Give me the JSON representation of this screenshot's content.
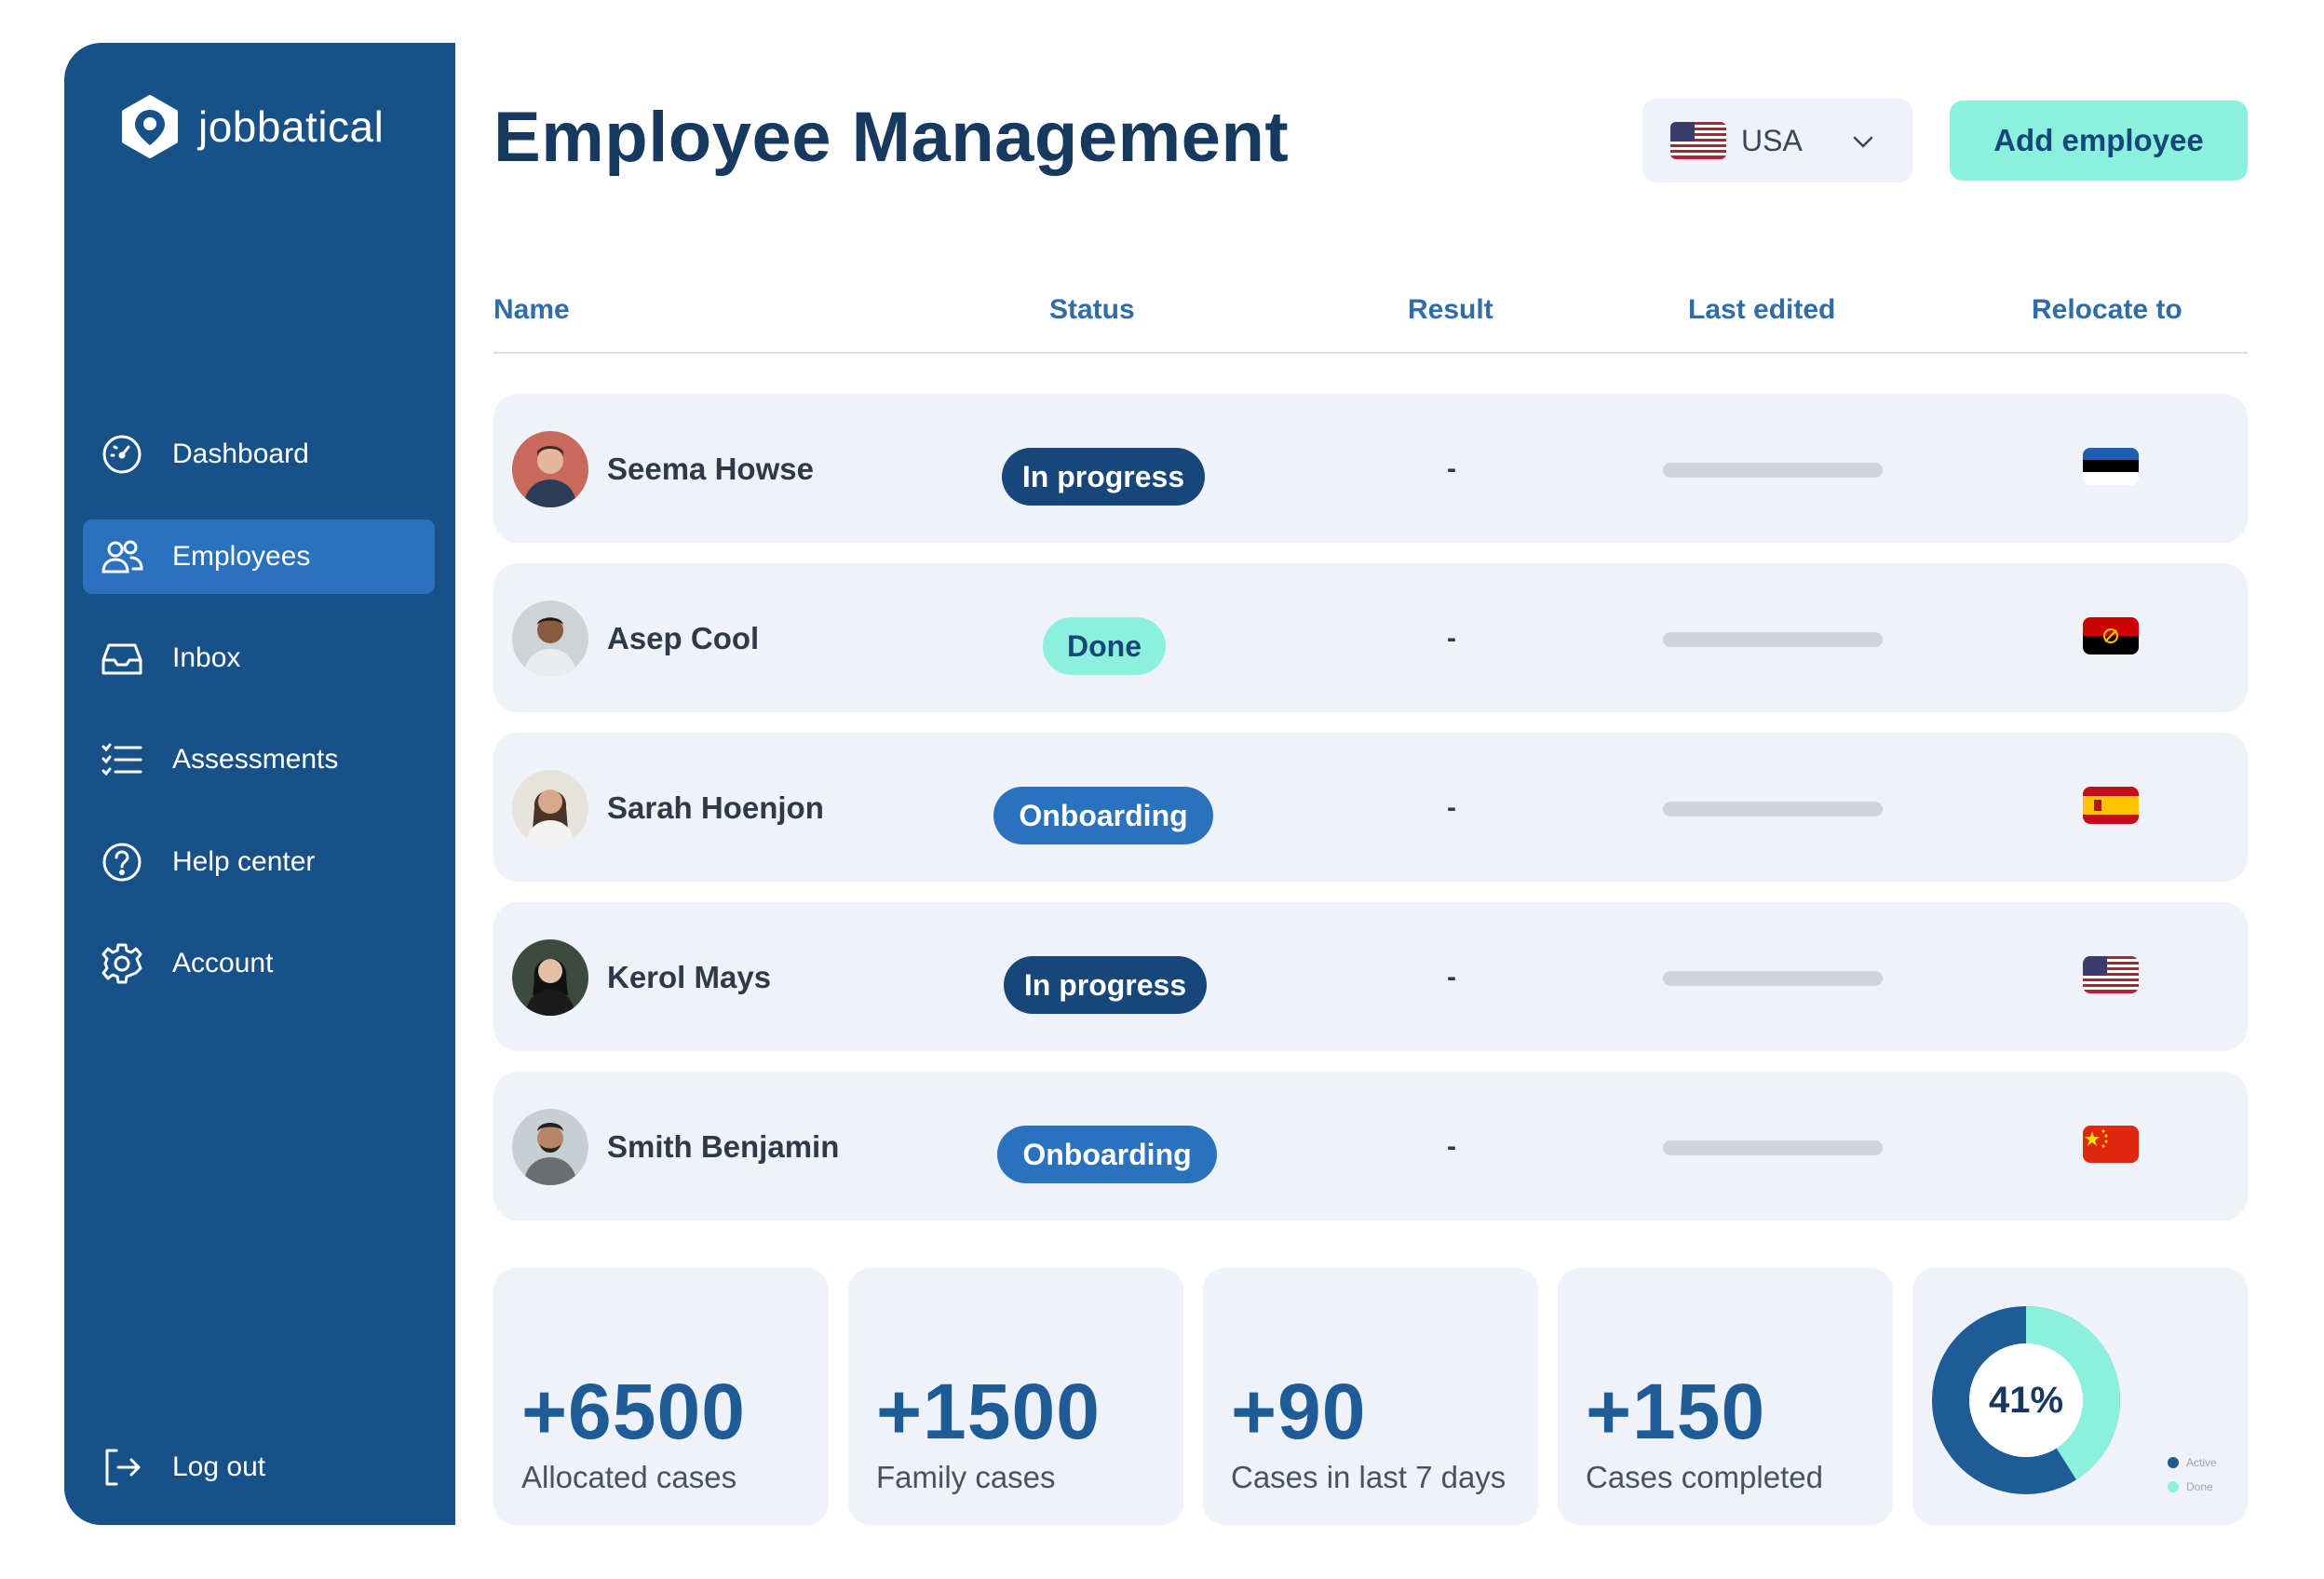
{
  "brand": {
    "name": "jobbatical"
  },
  "sidebar": {
    "items": [
      {
        "label": "Dashboard",
        "icon": "gauge-icon"
      },
      {
        "label": "Employees",
        "icon": "people-icon",
        "active": true
      },
      {
        "label": "Inbox",
        "icon": "inbox-icon"
      },
      {
        "label": "Assessments",
        "icon": "checklist-icon"
      },
      {
        "label": "Help center",
        "icon": "question-icon"
      },
      {
        "label": "Account",
        "icon": "gear-icon"
      }
    ],
    "logout": {
      "label": "Log out",
      "icon": "logout-icon"
    }
  },
  "header": {
    "title": "Employee Management",
    "country_select": {
      "value": "USA",
      "flag": "us-flag-icon"
    },
    "add_button": "Add employee"
  },
  "table": {
    "columns": [
      "Name",
      "Status",
      "Result",
      "Last edited",
      "Relocate to"
    ],
    "rows": [
      {
        "name": "Seema Howse",
        "status": "In progress",
        "result": "-",
        "flag": "estonia-flag-icon"
      },
      {
        "name": "Asep Cool",
        "status": "Done",
        "result": "-",
        "flag": "angola-flag-icon"
      },
      {
        "name": "Sarah Hoenjon",
        "status": "Onboarding",
        "result": "-",
        "flag": "spain-flag-icon"
      },
      {
        "name": "Kerol Mays",
        "status": "In progress",
        "result": "-",
        "flag": "usa-flag-icon"
      },
      {
        "name": "Smith Benjamin",
        "status": "Onboarding",
        "result": "-",
        "flag": "china-flag-icon"
      }
    ]
  },
  "stats": [
    {
      "value": "+6500",
      "label": "Allocated cases"
    },
    {
      "value": "+1500",
      "label": "Family cases"
    },
    {
      "value": "+90",
      "label": "Cases in last 7 days"
    },
    {
      "value": "+150",
      "label": "Cases completed"
    }
  ],
  "donut": {
    "label": "41%",
    "percent": 41,
    "legend": [
      {
        "name": "Active",
        "color": "#1f5b96"
      },
      {
        "name": "Done",
        "color": "#8bf0dc"
      }
    ]
  },
  "colors": {
    "sidebar": "#175187",
    "active_nav": "#2b72be",
    "accent": "#8bf0dc",
    "in_progress_badge": "#16467a",
    "onboarding_badge": "#2b72be",
    "done_badge": "#8bf0dc"
  }
}
